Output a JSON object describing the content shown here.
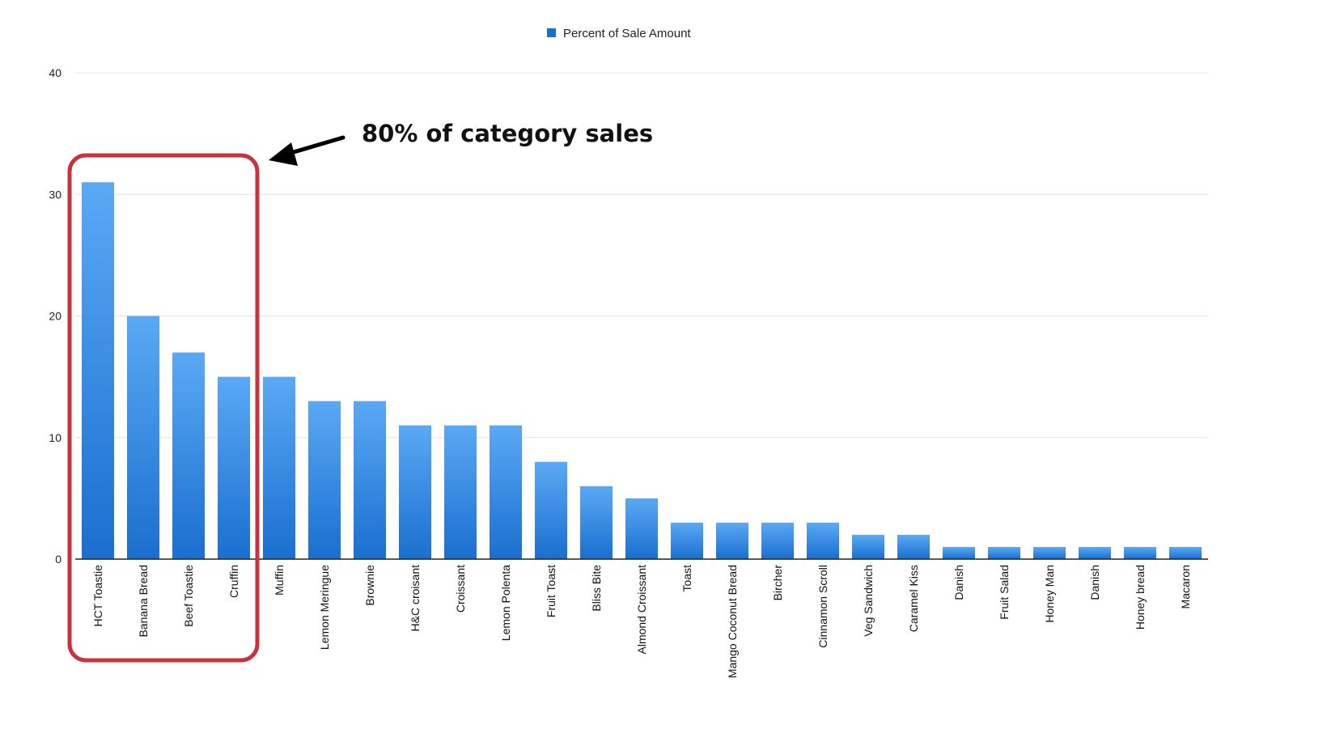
{
  "chart_data": {
    "type": "bar",
    "title": "",
    "xlabel": "",
    "ylabel": "",
    "ylim": [
      0,
      40
    ],
    "yticks": [
      0,
      10,
      20,
      30,
      40
    ],
    "grid": true,
    "legend_position": "top-center",
    "categories": [
      "HCT Toastie",
      "Banana Bread",
      "Beef Toastie",
      "Cruffin",
      "Muffin",
      "Lemon Meringue",
      "Brownie",
      "H&C croisant",
      "Croissant",
      "Lemon Polenta",
      "Fruit Toast",
      "Bliss Bite",
      "Almond Croissant",
      "Toast",
      "Mango Coconut Bread",
      "Bircher",
      "Cinnamon Scroll",
      "Veg Sandwich",
      "Caramel Kiss",
      "Danish",
      "Fruit Salad",
      "Honey Man",
      "Danish",
      "Honey bread",
      "Macaron"
    ],
    "series": [
      {
        "name": "Percent of Sale Amount",
        "color_top": "#5aa9f5",
        "color_bottom": "#1a6fcf",
        "values": [
          31,
          20,
          17,
          15,
          15,
          13,
          13,
          11,
          11,
          11,
          8,
          6,
          5,
          3,
          3,
          3,
          3,
          2,
          2,
          1,
          1,
          1,
          1,
          1,
          1
        ]
      }
    ],
    "annotation": {
      "text": "80% of category sales",
      "highlight_color": "#c8323c",
      "highlighted_categories": [
        "HCT Toastie",
        "Banana Bread",
        "Beef Toastie",
        "Cruffin"
      ]
    }
  }
}
